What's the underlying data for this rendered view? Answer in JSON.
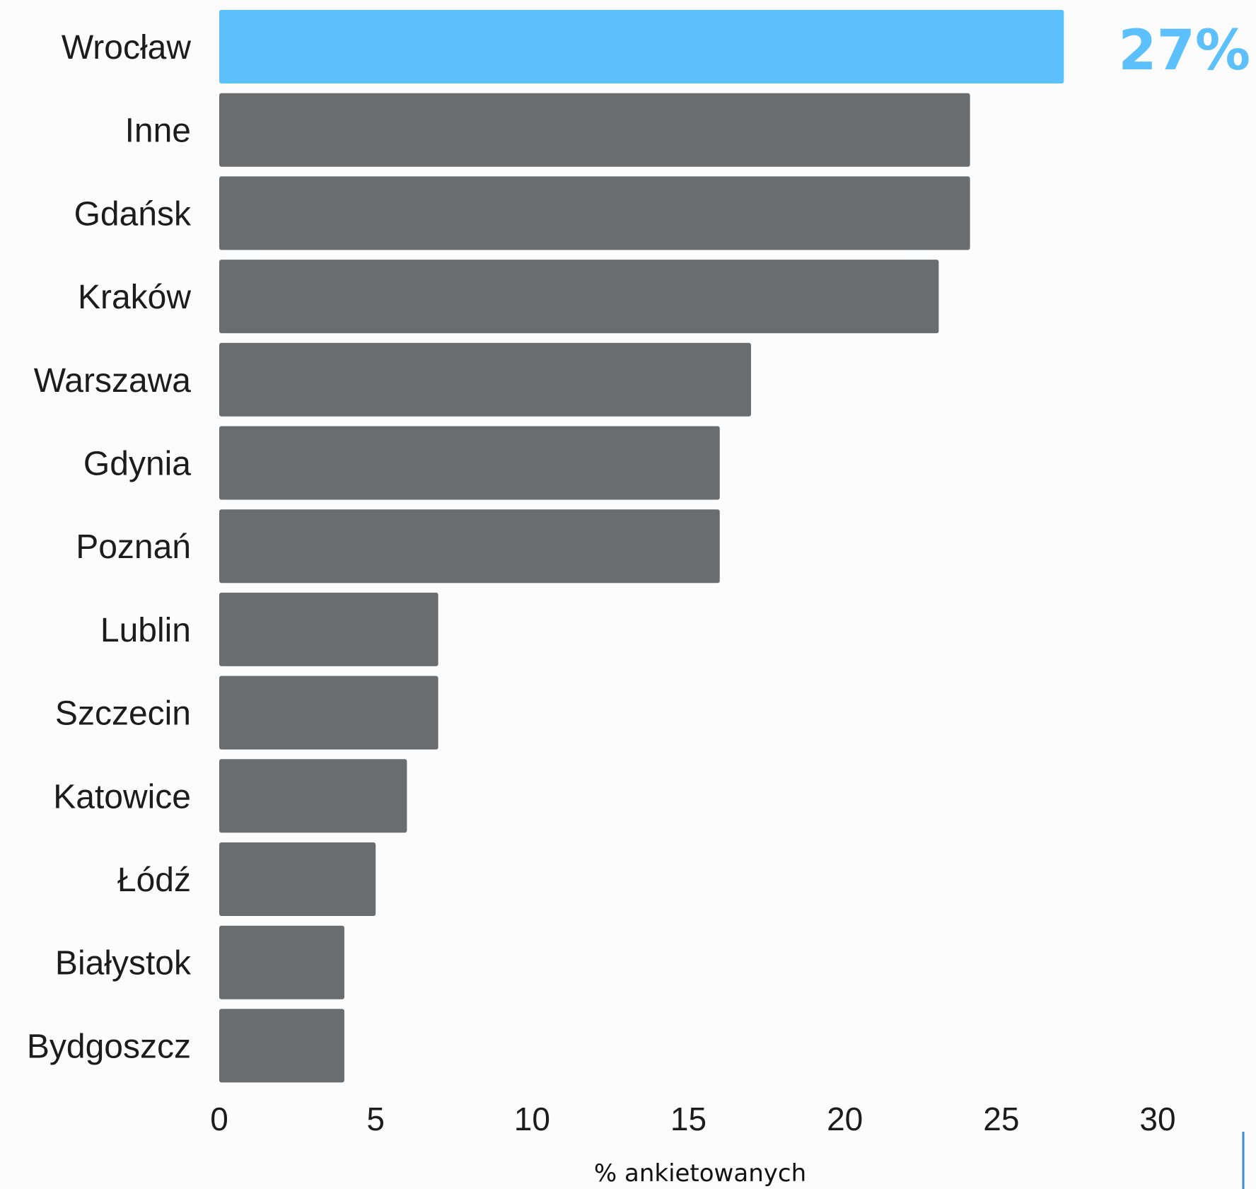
{
  "chart_data": {
    "type": "bar",
    "orientation": "horizontal",
    "categories": [
      "Wrocław",
      "Inne",
      "Gdańsk",
      "Kraków",
      "Warszawa",
      "Gdynia",
      "Poznań",
      "Lublin",
      "Szczecin",
      "Katowice",
      "Łódź",
      "Białystok",
      "Bydgoszcz"
    ],
    "values": [
      27,
      24,
      24,
      23,
      17,
      16,
      16,
      7,
      7,
      6,
      5,
      4,
      4
    ],
    "highlight_index": 0,
    "highlight_label": "27%",
    "xlabel": "% ankietowanych",
    "ylabel": "",
    "title": "",
    "xlim": [
      0,
      30
    ],
    "xticks": [
      0,
      5,
      10,
      15,
      20,
      25,
      30
    ],
    "grid": false,
    "legend": "none"
  },
  "colors": {
    "bar": "#6a6d70",
    "highlight": "#5bc0fb",
    "text": "#1c1c1c",
    "background": "#fcfcfc",
    "accent_line": "#3a8fd0"
  }
}
